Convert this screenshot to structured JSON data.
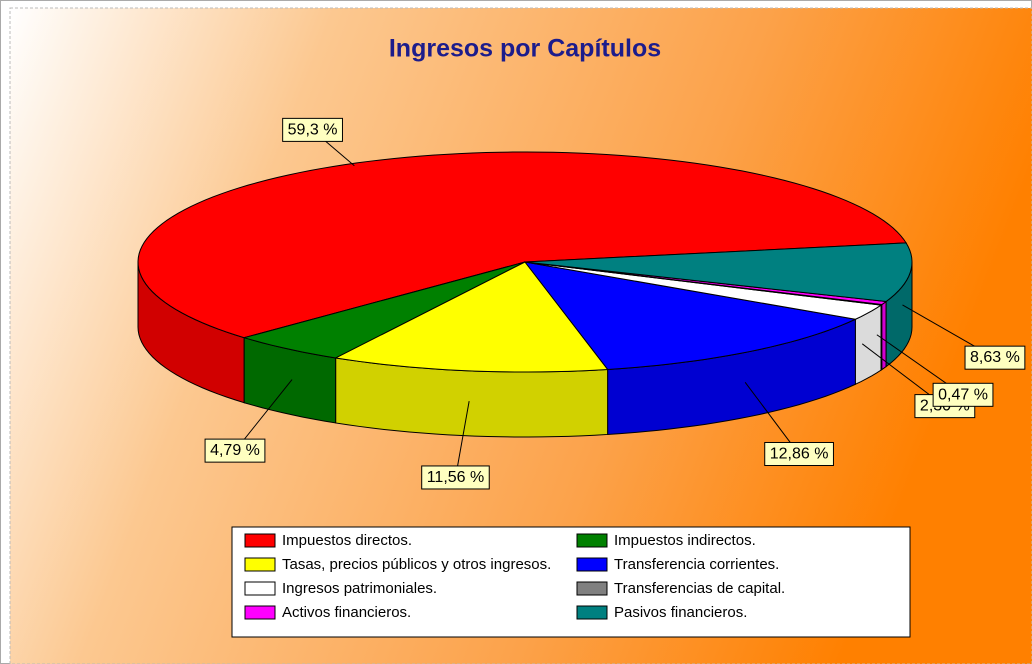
{
  "chart_data": {
    "type": "pie3d",
    "title": "Ingresos por Capítulos",
    "categories": [
      "Impuestos directos.",
      "Impuestos indirectos.",
      "Tasas, precios públicos y otros ingresos.",
      "Transferencia corrientes.",
      "Ingresos patrimoniales.",
      "Transferencias de capital.",
      "Activos financieros.",
      "Pasivos financieros."
    ],
    "values": [
      59.3,
      4.79,
      11.56,
      12.86,
      2.3,
      0.09,
      0.47,
      8.63
    ],
    "value_labels": [
      "59,3 %",
      "4,79 %",
      "11,56 %",
      "12,86 %",
      "2,30 %",
      null,
      "0,47 %",
      "8,63 %"
    ],
    "colors": [
      "#ff0000",
      "#008000",
      "#ffff00",
      "#0000ff",
      "#ffffff",
      "#808080",
      "#ff00ff",
      "#008080"
    ]
  }
}
